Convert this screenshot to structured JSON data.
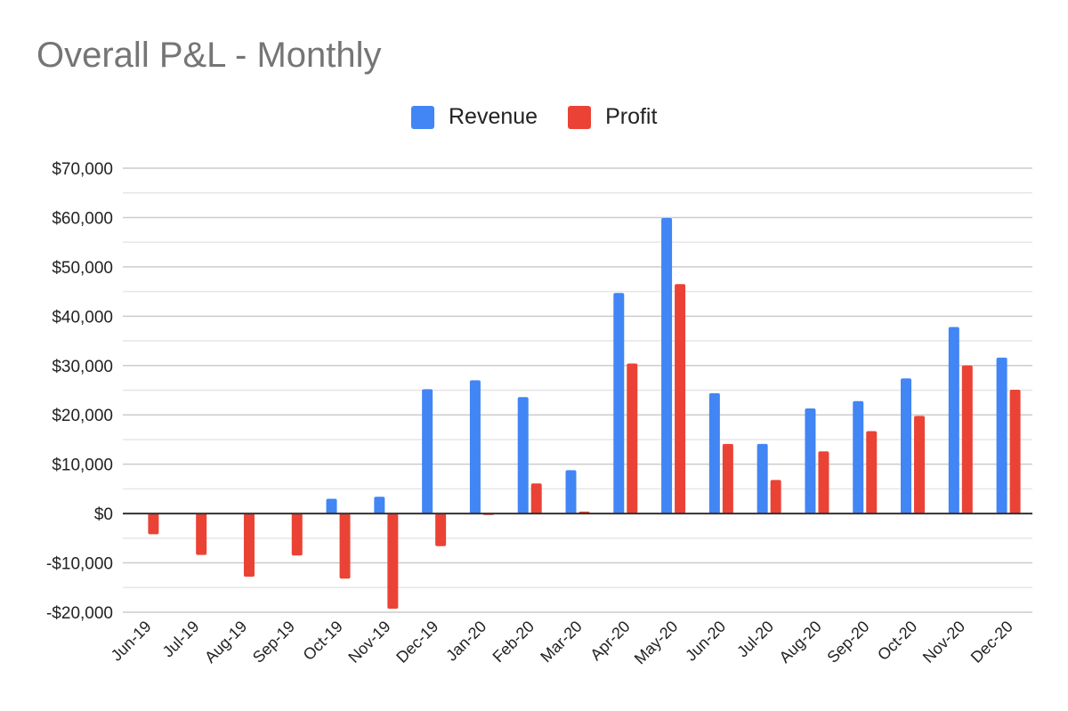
{
  "chart_data": {
    "type": "bar",
    "title": "Overall P&L - Monthly",
    "categories": [
      "Jun-19",
      "Jul-19",
      "Aug-19",
      "Sep-19",
      "Oct-19",
      "Nov-19",
      "Dec-19",
      "Jan-20",
      "Feb-20",
      "Mar-20",
      "Apr-20",
      "May-20",
      "Jun-20",
      "Jul-20",
      "Aug-20",
      "Sep-20",
      "Oct-20",
      "Nov-20",
      "Dec-20"
    ],
    "series": [
      {
        "name": "Revenue",
        "color": "#4285F4",
        "values": [
          0,
          0,
          0,
          0,
          3000,
          3400,
          25200,
          27000,
          23600,
          8800,
          44700,
          59900,
          24400,
          14100,
          21300,
          22800,
          27400,
          37800,
          31600
        ]
      },
      {
        "name": "Profit",
        "color": "#EA4335",
        "values": [
          -4200,
          -8400,
          -12800,
          -8500,
          -13200,
          -19300,
          -6600,
          -300,
          6100,
          400,
          30400,
          46500,
          14100,
          6800,
          12600,
          16700,
          19800,
          30000,
          25100
        ]
      }
    ],
    "ylim": [
      -20000,
      70000
    ],
    "yticks": [
      70000,
      60000,
      50000,
      40000,
      30000,
      20000,
      10000,
      0,
      -10000,
      -20000
    ],
    "ytick_labels": [
      "$70,000",
      "$60,000",
      "$50,000",
      "$40,000",
      "$30,000",
      "$20,000",
      "$10,000",
      "$0",
      "-$10,000",
      "-$20,000"
    ],
    "xlabel": "",
    "ylabel": "",
    "legend_position": "top-center",
    "grid": true
  }
}
